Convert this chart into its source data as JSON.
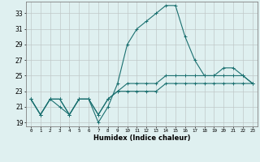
{
  "x": [
    0,
    1,
    2,
    3,
    4,
    5,
    6,
    7,
    8,
    9,
    10,
    11,
    12,
    13,
    14,
    15,
    16,
    17,
    18,
    19,
    20,
    21,
    22,
    23
  ],
  "line1": [
    22,
    20,
    22,
    21,
    20,
    22,
    22,
    19,
    21,
    24,
    29,
    31,
    32,
    33,
    34,
    34,
    30,
    27,
    25,
    25,
    26,
    26,
    25,
    24
  ],
  "line2": [
    22,
    20,
    22,
    22,
    20,
    22,
    22,
    20,
    22,
    23,
    24,
    24,
    24,
    24,
    25,
    25,
    25,
    25,
    25,
    25,
    25,
    25,
    25,
    24
  ],
  "line3": [
    22,
    20,
    22,
    22,
    20,
    22,
    22,
    20,
    22,
    23,
    23,
    23,
    23,
    23,
    24,
    24,
    24,
    24,
    24,
    24,
    24,
    24,
    24,
    24
  ],
  "bg_color": "#dff0f0",
  "grid_color": "#c0c8c8",
  "line_color": "#1a7070",
  "xlabel": "Humidex (Indice chaleur)",
  "yticks": [
    19,
    21,
    23,
    25,
    27,
    29,
    31,
    33
  ],
  "xticks": [
    0,
    1,
    2,
    3,
    4,
    5,
    6,
    7,
    8,
    9,
    10,
    11,
    12,
    13,
    14,
    15,
    16,
    17,
    18,
    19,
    20,
    21,
    22,
    23
  ],
  "xlim": [
    -0.5,
    23.5
  ],
  "ylim": [
    18.5,
    34.5
  ]
}
